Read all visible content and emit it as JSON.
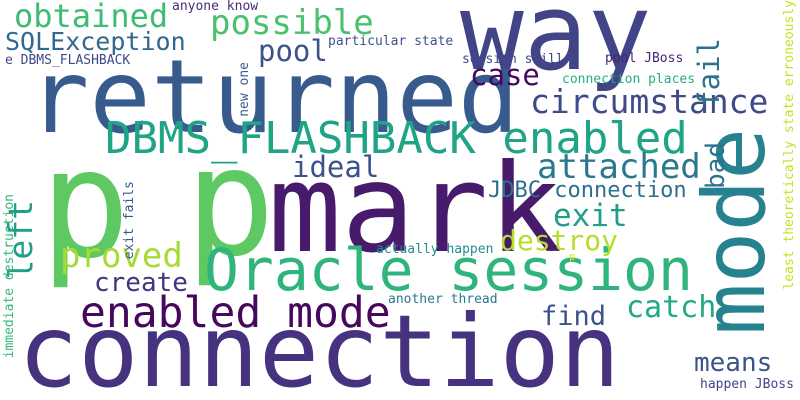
{
  "words": [
    {
      "text": "connection",
      "color": "#46327e"
    },
    {
      "text": "p",
      "color": "#5ec962"
    },
    {
      "text": "p",
      "color": "#5ec962"
    },
    {
      "text": "mark",
      "color": "#481a6c"
    },
    {
      "text": "returned",
      "color": "#375b8d"
    },
    {
      "text": "way",
      "color": "#414487"
    },
    {
      "text": "mode",
      "color": "#26828e"
    },
    {
      "text": "Oracle session",
      "color": "#2fb47c"
    },
    {
      "text": "DBMS_FLASHBACK enabled",
      "color": "#20a486"
    },
    {
      "text": "enabled mode",
      "color": "#46085c"
    },
    {
      "text": "circumstance",
      "color": "#3e4a89"
    },
    {
      "text": "attached",
      "color": "#2a788e"
    },
    {
      "text": "possible",
      "color": "#4ac16d"
    },
    {
      "text": "obtained",
      "color": "#3fbc73"
    },
    {
      "text": "SQLException",
      "color": "#31688e"
    },
    {
      "text": "pool",
      "color": "#3b528b"
    },
    {
      "text": "case",
      "color": "#46085c"
    },
    {
      "text": "fail",
      "color": "#2c728e"
    },
    {
      "text": "ideal",
      "color": "#3b528b"
    },
    {
      "text": "exit",
      "color": "#1f9e89"
    },
    {
      "text": "destroy",
      "color": "#b5de2b"
    },
    {
      "text": "catch",
      "color": "#22a884"
    },
    {
      "text": "find",
      "color": "#3b528b"
    },
    {
      "text": "means",
      "color": "#3b528b"
    },
    {
      "text": "proved",
      "color": "#a5db36"
    },
    {
      "text": "create",
      "color": "#46327e"
    },
    {
      "text": "left",
      "color": "#1f9e89"
    },
    {
      "text": "bad",
      "color": "#2c728e"
    },
    {
      "text": "JDBC connection",
      "color": "#2d708e"
    },
    {
      "text": "anyone know",
      "color": "#472c7a"
    },
    {
      "text": "particular state",
      "color": "#3b528b"
    },
    {
      "text": "session still",
      "color": "#3e4a89"
    },
    {
      "text": "pool JBoss",
      "color": "#482475"
    },
    {
      "text": "connection places",
      "color": "#27ad81"
    },
    {
      "text": "e DBMS_FLASHBACK",
      "color": "#3e4a89"
    },
    {
      "text": "new one",
      "color": "#365c8d"
    },
    {
      "text": "immediate destruction",
      "color": "#35b779"
    },
    {
      "text": "exit fails",
      "color": "#39568c"
    },
    {
      "text": "actually happen",
      "color": "#21918c"
    },
    {
      "text": "another thread",
      "color": "#2a788e"
    },
    {
      "text": "happen JBoss",
      "color": "#404688"
    },
    {
      "text": "least theoretically state erroneously",
      "color": "#c8e020"
    },
    {
      "text": "p",
      "color": "#dde318"
    }
  ]
}
